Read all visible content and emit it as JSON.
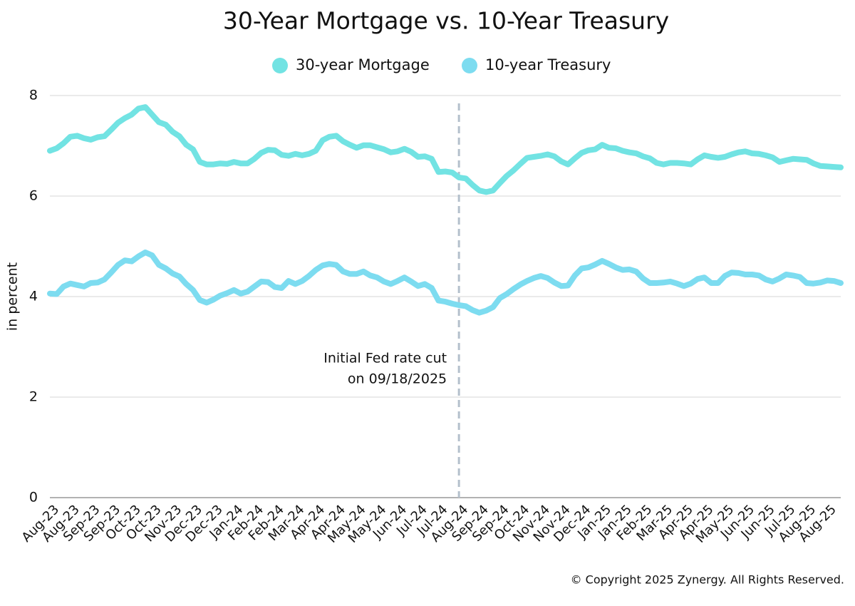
{
  "chart_data": {
    "type": "line",
    "title": "30-Year Mortgage vs. 10-Year Treasury",
    "y_label": "in percent",
    "footer": "© Copyright 2025 Zynergy. All Rights Reserved.",
    "annotation": {
      "lines": [
        "Initial Fed rate cut",
        "on 09/18/2025"
      ],
      "at_index": 60
    },
    "ylim": [
      0,
      8
    ],
    "yticks": [
      0,
      2,
      4,
      6,
      8
    ],
    "grid": true,
    "legend": "top",
    "categories": [
      "Aug-23",
      null,
      null,
      "Aug-23",
      null,
      null,
      "Sep-23",
      null,
      null,
      "Sep-23",
      null,
      null,
      "Oct-23",
      null,
      null,
      "Oct-23",
      null,
      null,
      "Nov-23",
      null,
      null,
      "Dec-23",
      null,
      null,
      "Dec-23",
      null,
      null,
      "Jan-24",
      null,
      null,
      "Feb-24",
      null,
      null,
      "Feb-24",
      null,
      null,
      "Mar-24",
      null,
      null,
      "Apr-24",
      null,
      null,
      "Apr-24",
      null,
      null,
      "May-24",
      null,
      null,
      "May-24",
      null,
      null,
      "Jun-24",
      null,
      null,
      "Jul-24",
      null,
      null,
      "Jul-24",
      null,
      null,
      "Aug-24",
      null,
      null,
      "Sep-24",
      null,
      null,
      "Sep-24",
      null,
      null,
      "Oct-24",
      null,
      null,
      "Nov-24",
      null,
      null,
      "Nov-24",
      null,
      null,
      "Dec-24",
      null,
      null,
      "Jan-25",
      null,
      null,
      "Jan-25",
      null,
      null,
      "Feb-25",
      null,
      null,
      "Mar-25",
      null,
      null,
      "Apr-25",
      null,
      null,
      "Apr-25",
      null,
      null,
      "May-25",
      null,
      null,
      "Jun-25",
      null,
      null,
      "Jun-25",
      null,
      null,
      "Jul-25",
      null,
      null,
      "Aug-25",
      null,
      null,
      "Aug-25",
      null,
      null
    ],
    "series": [
      {
        "name": "30-year Mortgage",
        "color": "#72e3e3",
        "values": [
          6.9,
          6.95,
          7.05,
          7.18,
          7.2,
          7.15,
          7.12,
          7.17,
          7.19,
          7.32,
          7.46,
          7.55,
          7.62,
          7.74,
          7.77,
          7.62,
          7.47,
          7.42,
          7.28,
          7.19,
          7.02,
          6.93,
          6.68,
          6.63,
          6.63,
          6.65,
          6.64,
          6.68,
          6.65,
          6.65,
          6.74,
          6.86,
          6.92,
          6.91,
          6.82,
          6.8,
          6.84,
          6.81,
          6.84,
          6.9,
          7.11,
          7.18,
          7.2,
          7.09,
          7.02,
          6.96,
          7.01,
          7.01,
          6.97,
          6.93,
          6.87,
          6.89,
          6.94,
          6.88,
          6.78,
          6.79,
          6.74,
          6.48,
          6.49,
          6.47,
          6.37,
          6.35,
          6.22,
          6.11,
          6.08,
          6.11,
          6.26,
          6.4,
          6.51,
          6.64,
          6.76,
          6.78,
          6.8,
          6.83,
          6.79,
          6.69,
          6.63,
          6.75,
          6.86,
          6.91,
          6.93,
          7.02,
          6.96,
          6.95,
          6.9,
          6.87,
          6.85,
          6.79,
          6.75,
          6.66,
          6.63,
          6.66,
          6.66,
          6.65,
          6.63,
          6.73,
          6.81,
          6.78,
          6.76,
          6.78,
          6.83,
          6.87,
          6.89,
          6.85,
          6.84,
          6.81,
          6.77,
          6.68,
          6.71,
          6.74,
          6.73,
          6.72,
          6.65,
          6.6,
          6.59,
          6.58,
          6.57
        ]
      },
      {
        "name": "10-year Treasury",
        "color": "#7ddcf0",
        "values": [
          4.06,
          4.05,
          4.2,
          4.26,
          4.23,
          4.2,
          4.27,
          4.28,
          4.34,
          4.48,
          4.63,
          4.72,
          4.7,
          4.8,
          4.88,
          4.82,
          4.63,
          4.56,
          4.46,
          4.4,
          4.25,
          4.13,
          3.93,
          3.88,
          3.94,
          4.02,
          4.07,
          4.13,
          4.06,
          4.1,
          4.2,
          4.3,
          4.29,
          4.19,
          4.17,
          4.31,
          4.25,
          4.31,
          4.41,
          4.53,
          4.62,
          4.65,
          4.63,
          4.5,
          4.45,
          4.45,
          4.5,
          4.42,
          4.38,
          4.3,
          4.25,
          4.31,
          4.38,
          4.3,
          4.21,
          4.25,
          4.17,
          3.92,
          3.9,
          3.86,
          3.83,
          3.81,
          3.73,
          3.68,
          3.72,
          3.79,
          3.97,
          4.05,
          4.15,
          4.24,
          4.31,
          4.37,
          4.41,
          4.37,
          4.28,
          4.21,
          4.22,
          4.42,
          4.56,
          4.58,
          4.64,
          4.71,
          4.65,
          4.58,
          4.53,
          4.54,
          4.5,
          4.36,
          4.27,
          4.27,
          4.28,
          4.3,
          4.26,
          4.21,
          4.26,
          4.35,
          4.38,
          4.27,
          4.27,
          4.41,
          4.48,
          4.47,
          4.44,
          4.44,
          4.42,
          4.34,
          4.3,
          4.36,
          4.44,
          4.42,
          4.39,
          4.27,
          4.26,
          4.28,
          4.32,
          4.31,
          4.27
        ]
      }
    ]
  }
}
